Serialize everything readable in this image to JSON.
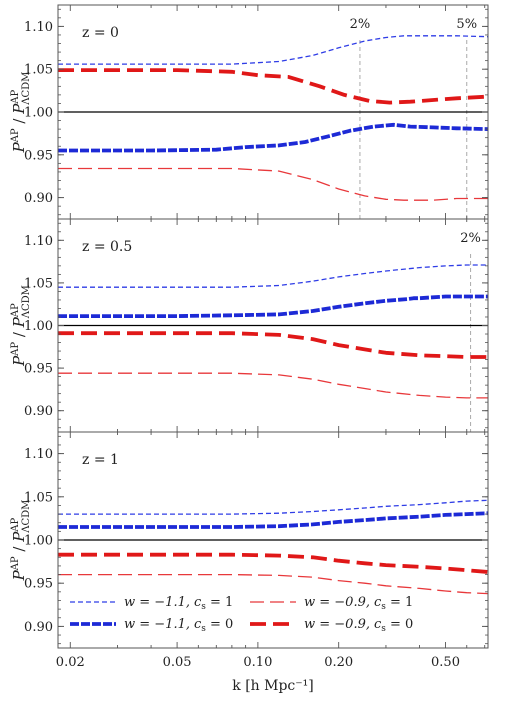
{
  "chart_data": {
    "type": "line",
    "xscale": "log",
    "xlim": [
      0.018,
      0.72
    ],
    "x_ticks": [
      0.02,
      0.05,
      0.1,
      0.2,
      0.5
    ],
    "x_tick_labels": [
      "0.02",
      "0.05",
      "0.10",
      "0.20",
      "0.50"
    ],
    "xlabel": "k [h Mpc⁻¹]",
    "ylabel": "P^AP / P^AP_ΛCDM",
    "ylim": [
      0.875,
      1.125
    ],
    "y_ticks": [
      0.9,
      0.95,
      1.0,
      1.05,
      1.1
    ],
    "y_tick_labels": [
      "0.90",
      "0.95",
      "1.00",
      "1.05",
      "1.10"
    ],
    "reference_line": 1.0,
    "grid": false,
    "legend": {
      "placement": "bottom-left of bottom panel",
      "entries": [
        {
          "series": "w=-1.1,cs=1",
          "w": "w = −1.1,",
          "cs": "c",
          "cs_sub": "s",
          "cs_val": " = 1"
        },
        {
          "series": "w=-0.9,cs=1",
          "w": "w = −0.9,",
          "cs": "c",
          "cs_sub": "s",
          "cs_val": " = 1"
        },
        {
          "series": "w=-1.1,cs=0",
          "w": "w = −1.1,",
          "cs": "c",
          "cs_sub": "s",
          "cs_val": " = 0"
        },
        {
          "series": "w=-0.9,cs=0",
          "w": "w = −0.9,",
          "cs": "c",
          "cs_sub": "s",
          "cs_val": " = 0"
        }
      ]
    },
    "series_styles": {
      "w=-1.1,cs=1": {
        "color": "#2f3de6",
        "width": 1.3,
        "dash": "5,3"
      },
      "w=-1.1,cs=0": {
        "color": "#1d2ad6",
        "width": 3.8,
        "dash": "9,2"
      },
      "w=-0.9,cs=1": {
        "color": "#e8383b",
        "width": 1.3,
        "dash": "14,6"
      },
      "w=-0.9,cs=0": {
        "color": "#e01818",
        "width": 3.8,
        "dash": "16,7"
      }
    },
    "panels": [
      {
        "label": "z = 0",
        "annotations": [
          {
            "text": "2%",
            "x": 0.24
          },
          {
            "text": "5%",
            "x": 0.6
          }
        ],
        "series": [
          {
            "name": "w=-1.1,cs=1",
            "x": [
              0.018,
              0.05,
              0.08,
              0.12,
              0.16,
              0.2,
              0.25,
              0.3,
              0.35,
              0.45,
              0.55,
              0.72
            ],
            "y": [
              1.056,
              1.056,
              1.056,
              1.059,
              1.066,
              1.075,
              1.083,
              1.087,
              1.089,
              1.089,
              1.089,
              1.088
            ]
          },
          {
            "name": "w=-1.1,cs=0",
            "x": [
              0.018,
              0.04,
              0.07,
              0.09,
              0.12,
              0.15,
              0.18,
              0.22,
              0.27,
              0.32,
              0.37,
              0.45,
              0.55,
              0.72
            ],
            "y": [
              0.955,
              0.955,
              0.956,
              0.959,
              0.961,
              0.965,
              0.971,
              0.978,
              0.983,
              0.985,
              0.983,
              0.982,
              0.981,
              0.98
            ]
          },
          {
            "name": "w=-0.9,cs=1",
            "x": [
              0.018,
              0.05,
              0.08,
              0.12,
              0.16,
              0.2,
              0.25,
              0.3,
              0.35,
              0.45,
              0.55,
              0.72
            ],
            "y": [
              0.934,
              0.934,
              0.934,
              0.931,
              0.921,
              0.91,
              0.902,
              0.898,
              0.897,
              0.897,
              0.899,
              0.899
            ]
          },
          {
            "name": "w=-0.9,cs=0",
            "x": [
              0.018,
              0.05,
              0.08,
              0.1,
              0.13,
              0.17,
              0.21,
              0.26,
              0.31,
              0.37,
              0.45,
              0.55,
              0.72
            ],
            "y": [
              1.049,
              1.049,
              1.047,
              1.043,
              1.041,
              1.03,
              1.02,
              1.013,
              1.011,
              1.012,
              1.014,
              1.016,
              1.018
            ]
          }
        ]
      },
      {
        "label": "z = 0.5",
        "annotations": [
          {
            "text": "2%",
            "x": 0.62
          }
        ],
        "series": [
          {
            "name": "w=-1.1,cs=1",
            "x": [
              0.018,
              0.05,
              0.08,
              0.12,
              0.16,
              0.2,
              0.25,
              0.3,
              0.4,
              0.5,
              0.6,
              0.72
            ],
            "y": [
              1.045,
              1.045,
              1.045,
              1.047,
              1.052,
              1.057,
              1.061,
              1.064,
              1.068,
              1.07,
              1.071,
              1.071
            ]
          },
          {
            "name": "w=-1.1,cs=0",
            "x": [
              0.018,
              0.05,
              0.08,
              0.12,
              0.16,
              0.2,
              0.25,
              0.3,
              0.36,
              0.38,
              0.4,
              0.5,
              0.72
            ],
            "y": [
              1.011,
              1.011,
              1.012,
              1.013,
              1.017,
              1.022,
              1.026,
              1.029,
              1.031,
              1.032,
              1.032,
              1.034,
              1.034
            ]
          },
          {
            "name": "w=-0.9,cs=1",
            "x": [
              0.018,
              0.05,
              0.08,
              0.12,
              0.16,
              0.2,
              0.25,
              0.3,
              0.4,
              0.5,
              0.6,
              0.72
            ],
            "y": [
              0.944,
              0.944,
              0.944,
              0.942,
              0.937,
              0.931,
              0.926,
              0.922,
              0.918,
              0.916,
              0.915,
              0.915
            ]
          },
          {
            "name": "w=-0.9,cs=0",
            "x": [
              0.018,
              0.05,
              0.08,
              0.12,
              0.16,
              0.2,
              0.25,
              0.3,
              0.4,
              0.5,
              0.6,
              0.72
            ],
            "y": [
              0.991,
              0.991,
              0.991,
              0.989,
              0.984,
              0.977,
              0.972,
              0.968,
              0.965,
              0.964,
              0.963,
              0.963
            ]
          }
        ]
      },
      {
        "label": "z = 1",
        "annotations": [],
        "series": [
          {
            "name": "w=-1.1,cs=1",
            "x": [
              0.018,
              0.05,
              0.08,
              0.12,
              0.16,
              0.2,
              0.25,
              0.3,
              0.4,
              0.5,
              0.6,
              0.72
            ],
            "y": [
              1.03,
              1.03,
              1.03,
              1.031,
              1.033,
              1.035,
              1.037,
              1.039,
              1.041,
              1.043,
              1.045,
              1.046
            ]
          },
          {
            "name": "w=-1.1,cs=0",
            "x": [
              0.018,
              0.05,
              0.08,
              0.12,
              0.16,
              0.2,
              0.25,
              0.3,
              0.4,
              0.5,
              0.6,
              0.72
            ],
            "y": [
              1.015,
              1.015,
              1.015,
              1.016,
              1.018,
              1.021,
              1.023,
              1.025,
              1.027,
              1.029,
              1.03,
              1.031
            ]
          },
          {
            "name": "w=-0.9,cs=1",
            "x": [
              0.018,
              0.05,
              0.08,
              0.12,
              0.16,
              0.2,
              0.25,
              0.3,
              0.4,
              0.5,
              0.6,
              0.72
            ],
            "y": [
              0.96,
              0.96,
              0.96,
              0.959,
              0.957,
              0.953,
              0.95,
              0.947,
              0.944,
              0.941,
              0.939,
              0.938
            ]
          },
          {
            "name": "w=-0.9,cs=0",
            "x": [
              0.018,
              0.05,
              0.08,
              0.12,
              0.16,
              0.2,
              0.25,
              0.3,
              0.4,
              0.5,
              0.6,
              0.72
            ],
            "y": [
              0.983,
              0.983,
              0.983,
              0.982,
              0.98,
              0.976,
              0.973,
              0.971,
              0.969,
              0.967,
              0.965,
              0.963
            ]
          }
        ]
      }
    ]
  }
}
